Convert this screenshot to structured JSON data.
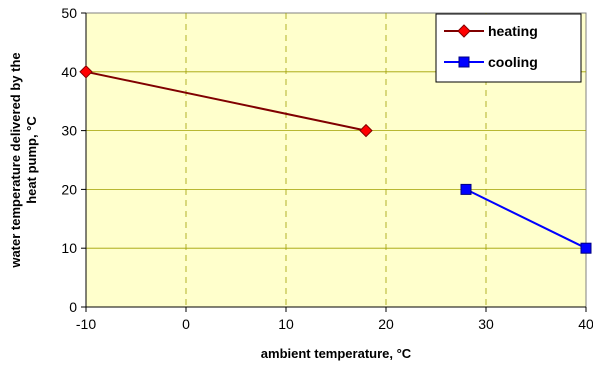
{
  "chart_data": {
    "type": "line",
    "xlabel": "ambient temperature, °C",
    "ylabel_line1": "water temperature delivered by the",
    "ylabel_line2": "heat pump, °C",
    "xlim": [
      -10,
      40
    ],
    "ylim": [
      0,
      50
    ],
    "xticks": [
      -10,
      0,
      10,
      20,
      30,
      40
    ],
    "yticks": [
      0,
      10,
      20,
      30,
      40,
      50
    ],
    "grid": {
      "x": "dashed",
      "y": "solid"
    },
    "plot_background": "#ffffcc",
    "legend_position": "top-right",
    "series": [
      {
        "name": "heating",
        "marker": "diamond",
        "color": "#800000",
        "marker_color": "#ff0000",
        "x": [
          -10,
          18
        ],
        "y": [
          40,
          30
        ]
      },
      {
        "name": "cooling",
        "marker": "square",
        "color": "#0000ff",
        "marker_color": "#0000ff",
        "x": [
          28,
          40
        ],
        "y": [
          20,
          10
        ]
      }
    ]
  }
}
